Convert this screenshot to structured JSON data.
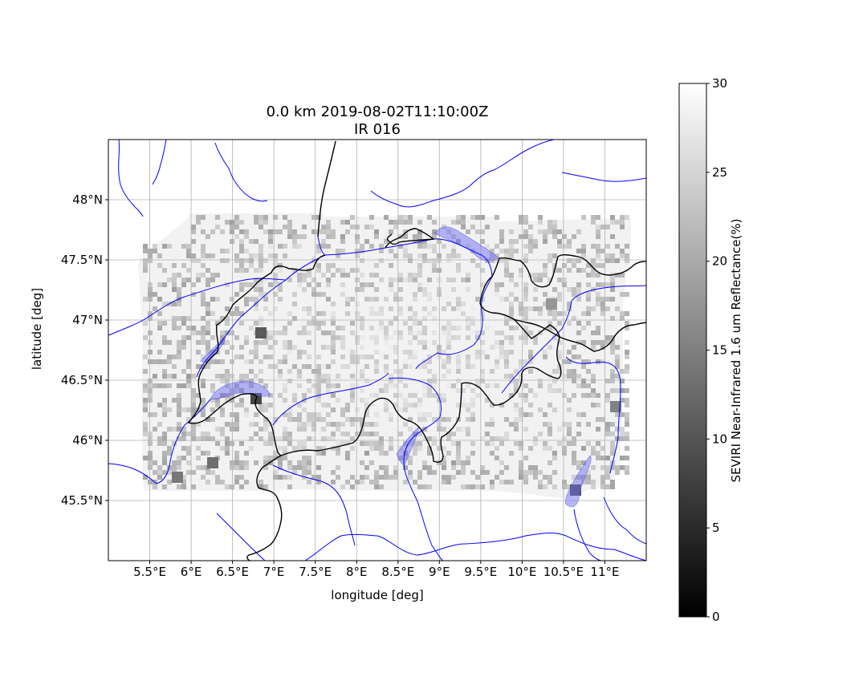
{
  "title": {
    "line1": "0.0 km 2019-08-02T11:10:00Z",
    "line2": "IR 016"
  },
  "axes": {
    "xlabel": "longitude [deg]",
    "ylabel": "latitude [deg]",
    "xticks": [
      "5.5°E",
      "6°E",
      "6.5°E",
      "7°E",
      "7.5°E",
      "8°E",
      "8.5°E",
      "9°E",
      "9.5°E",
      "10°E",
      "10.5°E",
      "11°E"
    ],
    "yticks": [
      "48°N",
      "47.5°N",
      "47°N",
      "46.5°N",
      "46°N",
      "45.5°N"
    ]
  },
  "colorbar": {
    "label": "SEVIRI Near-Infrared 1.6 um Reflectance(%)",
    "ticks": [
      "0",
      "5",
      "10",
      "15",
      "20",
      "25",
      "30"
    ],
    "range": [
      0,
      30
    ],
    "cmap": "grayscale"
  },
  "map_data": {
    "type": "heatmap",
    "lon_range": [
      5.0,
      11.5
    ],
    "lat_range": [
      45.0,
      48.5
    ],
    "grid": true,
    "data_extent": {
      "lon": [
        5.4,
        11.35
      ],
      "lat": [
        45.6,
        47.9
      ]
    },
    "layers": [
      "country borders (black)",
      "rivers (blue)",
      "lakes (translucent blue)"
    ]
  },
  "colors": {
    "border": "#000000",
    "river": "#0000ff",
    "lake": "#6f6ff0",
    "grid": "#b0b0b0"
  }
}
